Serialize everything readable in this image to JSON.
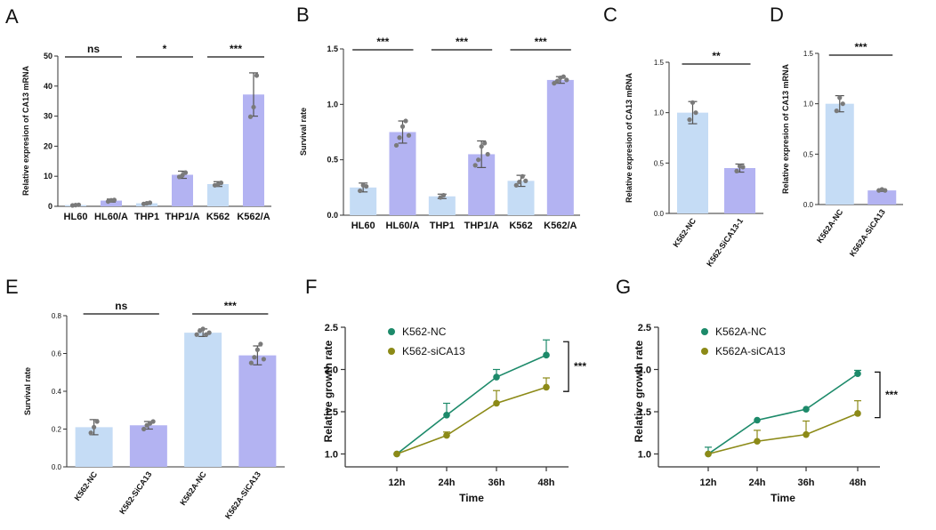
{
  "colors": {
    "light": "#c5dcf5",
    "purple": "#b3b3f2",
    "green": "#1d8a6a",
    "olive": "#8c8a17",
    "axis": "#333333",
    "point": "#7a7a7a",
    "err": "#555555"
  },
  "chart_data": [
    {
      "panel": "A",
      "type": "bar",
      "ylabel": "Relative expresion of CA13 mRNA",
      "categories": [
        "HL60",
        "HL60/A",
        "THP1",
        "THP1/A",
        "K562",
        "K562/A"
      ],
      "bar_colors": [
        "light",
        "purple",
        "light",
        "purple",
        "light",
        "purple"
      ],
      "values": [
        0.4,
        1.9,
        1.0,
        10.5,
        7.4,
        37.2
      ],
      "errors": [
        0.3,
        0.5,
        0.3,
        1.2,
        0.8,
        7.2
      ],
      "points": [
        [
          0.3,
          0.4,
          0.5
        ],
        [
          1.6,
          2.0,
          2.1
        ],
        [
          0.8,
          1.0,
          1.2
        ],
        [
          9.8,
          10.3,
          11.2
        ],
        [
          7.0,
          7.3,
          7.8
        ],
        [
          29.8,
          33.0,
          43.5
        ]
      ],
      "ylim": [
        0,
        50
      ],
      "yticks": [
        0,
        10,
        20,
        30,
        40,
        50
      ],
      "sig": [
        {
          "pair": [
            0,
            1
          ],
          "label": "ns"
        },
        {
          "pair": [
            2,
            3
          ],
          "label": "*"
        },
        {
          "pair": [
            4,
            5
          ],
          "label": "***"
        }
      ]
    },
    {
      "panel": "B",
      "type": "bar",
      "ylabel": "Survival rate",
      "categories": [
        "HL60",
        "HL60/A",
        "THP1",
        "THP1/A",
        "K562",
        "K562/A"
      ],
      "bar_colors": [
        "light",
        "purple",
        "light",
        "purple",
        "light",
        "purple"
      ],
      "values": [
        0.25,
        0.75,
        0.17,
        0.55,
        0.31,
        1.22
      ],
      "errors": [
        0.04,
        0.1,
        0.02,
        0.12,
        0.05,
        0.03
      ],
      "points": [
        [
          0.22,
          0.27,
          0.26
        ],
        [
          0.63,
          0.7,
          0.8,
          0.85,
          0.72
        ],
        [
          0.16,
          0.18
        ],
        [
          0.45,
          0.5,
          0.62,
          0.65,
          0.55
        ],
        [
          0.27,
          0.3,
          0.35,
          0.31
        ],
        [
          1.19,
          1.21,
          1.24,
          1.25,
          1.22
        ]
      ],
      "ylim": [
        0,
        1.5
      ],
      "yticks": [
        0.0,
        0.5,
        1.0,
        1.5
      ],
      "sig": [
        {
          "pair": [
            0,
            1
          ],
          "label": "***"
        },
        {
          "pair": [
            2,
            3
          ],
          "label": "***"
        },
        {
          "pair": [
            4,
            5
          ],
          "label": "***"
        }
      ]
    },
    {
      "panel": "C",
      "type": "bar",
      "ylabel": "Relative expresion of CA13 mRNA",
      "categories": [
        "K562-NC",
        "K562-SiCA13-1"
      ],
      "bar_colors": [
        "light",
        "purple"
      ],
      "values": [
        1.0,
        0.45
      ],
      "errors": [
        0.11,
        0.04
      ],
      "points": [
        [
          0.93,
          1.1,
          1.0
        ],
        [
          0.42,
          0.47,
          0.46
        ]
      ],
      "ylim": [
        0,
        1.5
      ],
      "yticks": [
        0.0,
        0.5,
        1.0,
        1.5
      ],
      "sig": [
        {
          "pair": [
            0,
            1
          ],
          "label": "**"
        }
      ]
    },
    {
      "panel": "D",
      "type": "bar",
      "ylabel": "Relative expresion of CA13 mRNA",
      "categories": [
        "K562A-NC",
        "K562A-SiCA13"
      ],
      "bar_colors": [
        "light",
        "purple"
      ],
      "values": [
        1.0,
        0.14
      ],
      "errors": [
        0.08,
        0.01
      ],
      "points": [
        [
          0.93,
          1.06,
          1.0
        ],
        [
          0.14,
          0.15,
          0.14
        ]
      ],
      "ylim": [
        0,
        1.5
      ],
      "yticks": [
        0.0,
        0.5,
        1.0,
        1.5
      ],
      "sig": [
        {
          "pair": [
            0,
            1
          ],
          "label": "***"
        }
      ]
    },
    {
      "panel": "E",
      "type": "bar",
      "ylabel": "Survival rate",
      "categories": [
        "K562-NC",
        "K562-SiCA13",
        "K562A-NC",
        "K562A-SiCA13"
      ],
      "bar_colors": [
        "light",
        "purple",
        "light",
        "purple"
      ],
      "values": [
        0.21,
        0.22,
        0.71,
        0.59
      ],
      "errors": [
        0.04,
        0.02,
        0.02,
        0.05
      ],
      "points": [
        [
          0.18,
          0.21,
          0.24
        ],
        [
          0.2,
          0.22,
          0.23,
          0.24
        ],
        [
          0.7,
          0.72,
          0.73,
          0.7,
          0.71
        ],
        [
          0.55,
          0.58,
          0.62,
          0.65,
          0.57
        ]
      ],
      "ylim": [
        0,
        0.8
      ],
      "yticks": [
        0.0,
        0.2,
        0.4,
        0.6,
        0.8
      ],
      "sig": [
        {
          "pair": [
            0,
            1
          ],
          "label": "ns"
        },
        {
          "pair": [
            2,
            3
          ],
          "label": "***"
        }
      ]
    },
    {
      "panel": "F",
      "type": "line",
      "xlabel": "Time",
      "ylabel": "Relative growth rate",
      "x": [
        "12h",
        "24h",
        "36h",
        "48h"
      ],
      "series": [
        {
          "name": "K562-NC",
          "color": "green",
          "values": [
            1.0,
            1.46,
            1.91,
            2.17
          ],
          "errors": [
            0,
            0.14,
            0.09,
            0.18
          ]
        },
        {
          "name": "K562-siCA13",
          "color": "olive",
          "values": [
            1.0,
            1.22,
            1.6,
            1.79
          ],
          "errors": [
            0,
            0.04,
            0.15,
            0.11
          ]
        }
      ],
      "ylim": [
        0.9,
        2.5
      ],
      "yticks": [
        1.0,
        1.5,
        2.0,
        2.5
      ],
      "sig_label": "***"
    },
    {
      "panel": "G",
      "type": "line",
      "xlabel": "Time",
      "ylabel": "Relative growth rate",
      "x": [
        "12h",
        "24h",
        "36h",
        "48h"
      ],
      "series": [
        {
          "name": "K562A-NC",
          "color": "green",
          "values": [
            1.0,
            1.4,
            1.53,
            1.95
          ],
          "errors": [
            0.08,
            0,
            0,
            0.04
          ]
        },
        {
          "name": "K562A-siCA13",
          "color": "olive",
          "values": [
            1.0,
            1.15,
            1.23,
            1.48
          ],
          "errors": [
            0,
            0.13,
            0.16,
            0.15
          ]
        }
      ],
      "ylim": [
        0.9,
        2.5
      ],
      "yticks": [
        1.0,
        1.5,
        2.0,
        2.5
      ],
      "sig_label": "***"
    }
  ]
}
